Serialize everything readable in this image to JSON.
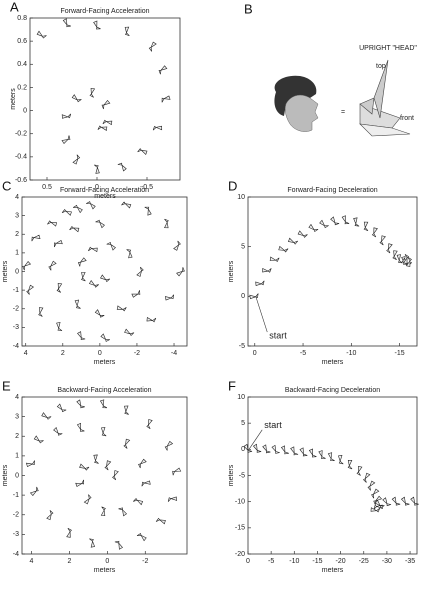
{
  "chart_data": [
    {
      "type": "scatter",
      "panel": "A",
      "title": "Forward-Facing Acceleration",
      "xlabel": "meters",
      "ylabel": "meters",
      "x": [
        0.55,
        0.3,
        0.0,
        -0.3,
        -0.55,
        -0.65,
        -0.68,
        -0.6,
        -0.45,
        -0.25,
        0.0,
        0.2,
        0.3,
        0.3,
        0.2,
        0.05,
        -0.08,
        -0.1,
        -0.05
      ],
      "y": [
        0.65,
        0.75,
        0.73,
        0.68,
        0.55,
        0.35,
        0.1,
        -0.15,
        -0.35,
        -0.48,
        -0.5,
        -0.42,
        -0.25,
        -0.05,
        0.1,
        0.15,
        0.05,
        -0.1,
        -0.15
      ],
      "xlim": [
        0.67,
        -0.83
      ],
      "ylim": [
        -0.6,
        0.8
      ],
      "xticks": [
        0.5,
        0,
        -0.5
      ],
      "yticks": [
        0.8,
        0.6,
        0.4,
        0.2,
        0,
        -0.2,
        -0.4,
        -0.6
      ]
    },
    {
      "type": "scatter",
      "panel": "C",
      "title": "Forward-Facing Acceleration",
      "xlabel": "meters",
      "ylabel": "meters",
      "x": [
        0.5,
        1.2,
        1.8,
        2.6,
        3.5,
        4.0,
        3.8,
        3.2,
        2.2,
        1.0,
        -0.3,
        -1.6,
        -2.8,
        -3.8,
        -4.4,
        -4.2,
        -3.6,
        -2.6,
        -1.4,
        0.0,
        1.4,
        2.3,
        2.6,
        2.2,
        1.2,
        0.0,
        -1.2,
        -2.0,
        -2.2,
        -1.6,
        -0.6,
        0.4,
        1.0,
        0.9,
        0.3,
        -0.3
      ],
      "y": [
        3.6,
        3.4,
        3.2,
        2.6,
        1.8,
        0.3,
        -1.0,
        -2.2,
        -3.0,
        -3.5,
        -3.6,
        -3.3,
        -2.6,
        -1.4,
        0.0,
        1.4,
        2.6,
        3.3,
        3.6,
        2.6,
        2.3,
        1.5,
        0.3,
        -0.9,
        -1.8,
        -2.3,
        -2.0,
        -1.2,
        0.0,
        1.0,
        1.4,
        1.2,
        0.5,
        -0.3,
        -0.7,
        -0.4
      ],
      "xlim": [
        4.2,
        -4.7
      ],
      "ylim": [
        -4,
        4
      ],
      "xticks": [
        4,
        2,
        0,
        -2,
        -4
      ],
      "yticks": [
        4,
        3,
        2,
        1,
        0,
        -1,
        -2,
        -3,
        -4
      ]
    },
    {
      "type": "scatter",
      "panel": "D",
      "title": "Forward-Facing Deceleration",
      "xlabel": "meters",
      "ylabel": "meters",
      "annotation": "start",
      "x": [
        0,
        -0.6,
        -1.3,
        -2.1,
        -3.0,
        -4.0,
        -5.0,
        -6.1,
        -7.2,
        -8.3,
        -9.4,
        -10.5,
        -11.5,
        -12.4,
        -13.2,
        -13.9,
        -14.5,
        -15.0,
        -15.5,
        -15.8,
        -16.0,
        -15.7
      ],
      "y": [
        0,
        1.3,
        2.6,
        3.7,
        4.7,
        5.5,
        6.2,
        6.8,
        7.2,
        7.5,
        7.6,
        7.4,
        7.0,
        6.4,
        5.6,
        4.8,
        4.1,
        3.7,
        3.5,
        3.4,
        3.5,
        3.8
      ],
      "xlim": [
        0.7,
        -16.8
      ],
      "ylim": [
        -5,
        10
      ],
      "xticks": [
        0,
        -5,
        -10,
        -15
      ],
      "yticks": [
        10,
        5,
        0,
        -5
      ]
    },
    {
      "type": "scatter",
      "panel": "E",
      "title": "Backward-Facing Acceleration",
      "xlabel": "meters",
      "ylabel": "meters",
      "x": [
        3.2,
        2.4,
        1.4,
        0.2,
        -1.0,
        -2.2,
        -3.2,
        -3.6,
        -3.4,
        -2.8,
        -1.8,
        -0.6,
        0.8,
        2.0,
        3.0,
        3.8,
        4.0,
        3.6,
        2.6,
        1.4,
        0.2,
        -1.0,
        -1.8,
        -2.0,
        -1.6,
        -0.8,
        0.2,
        1.0,
        1.4,
        1.2,
        0.6,
        0.0,
        -0.4
      ],
      "y": [
        3.0,
        3.4,
        3.6,
        3.6,
        3.3,
        2.6,
        1.5,
        0.2,
        -1.2,
        -2.3,
        -3.1,
        -3.5,
        -3.4,
        -2.9,
        -2.0,
        -0.8,
        0.6,
        1.8,
        2.2,
        2.4,
        2.2,
        1.6,
        0.6,
        -0.4,
        -1.3,
        -1.8,
        -1.8,
        -1.2,
        -0.4,
        0.4,
        0.8,
        0.5,
        0.0
      ],
      "xlim": [
        4.5,
        -4.2
      ],
      "ylim": [
        -4,
        4
      ],
      "xticks": [
        4,
        2,
        0,
        -2
      ],
      "yticks": [
        4,
        3,
        2,
        1,
        0,
        -1,
        -2,
        -3,
        -4
      ]
    },
    {
      "type": "scatter",
      "panel": "F",
      "title": "Backward-Facing Deceleration",
      "xlabel": "meters",
      "ylabel": "meters",
      "annotation": "start",
      "x": [
        0,
        -2,
        -4,
        -6,
        -8,
        -10,
        -12,
        -14,
        -16,
        -18,
        -20,
        -22,
        -24,
        -25.5,
        -26.5,
        -27.3,
        -27.8,
        -28,
        -27.6,
        -28.5,
        -30,
        -32,
        -34,
        -36
      ],
      "y": [
        0,
        0,
        -0.1,
        -0.2,
        -0.3,
        -0.5,
        -0.7,
        -0.9,
        -1.2,
        -1.6,
        -2.1,
        -3.0,
        -4.2,
        -5.5,
        -7.0,
        -8.5,
        -9.8,
        -11.0,
        -11.6,
        -10.6,
        -10.2,
        -10.1,
        -10.1,
        -10.1
      ],
      "xlim": [
        0,
        -36.5
      ],
      "ylim": [
        -20,
        10
      ],
      "xticks": [
        0,
        -5,
        -10,
        -15,
        -20,
        -25,
        -30,
        -35
      ],
      "yticks": [
        10,
        5,
        0,
        -5,
        -10,
        -15,
        -20
      ]
    }
  ],
  "panel_b": {
    "letter": "B",
    "equals": "=",
    "label": "UPRIGHT \"HEAD\"",
    "top": "top",
    "front": "front"
  }
}
